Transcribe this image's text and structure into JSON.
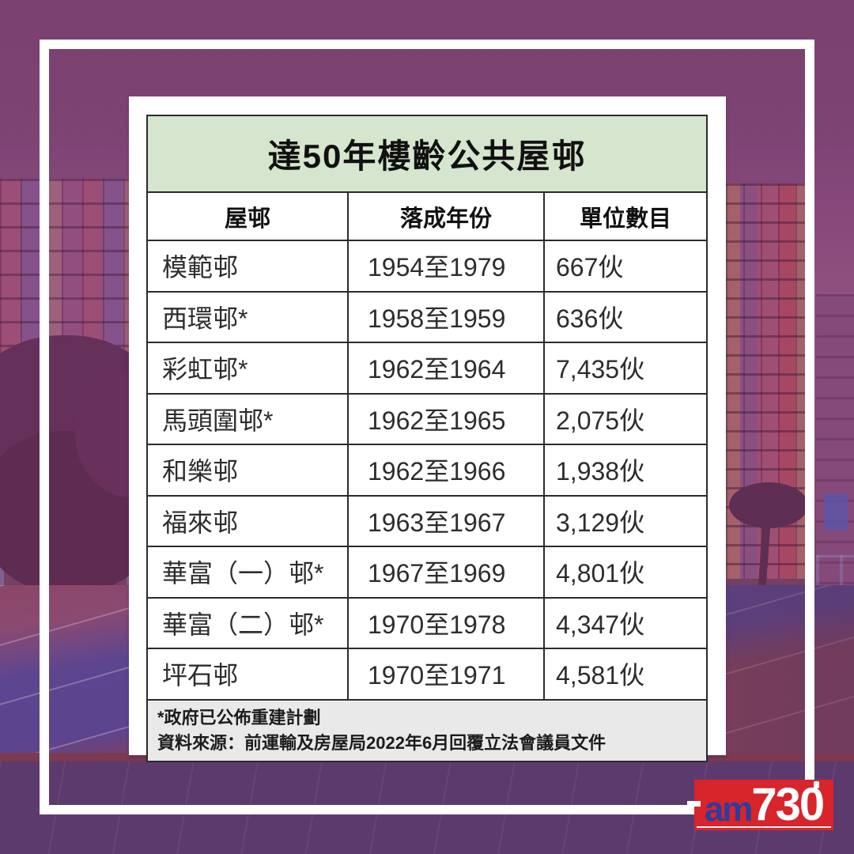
{
  "table": {
    "title": "達50年樓齡公共屋邨",
    "columns": [
      "屋邨",
      "落成年份",
      "單位數目"
    ],
    "rows": [
      {
        "estate": "模範邨",
        "years": "1954至1979",
        "units": "667伙"
      },
      {
        "estate": "西環邨*",
        "years": "1958至1959",
        "units": "636伙"
      },
      {
        "estate": "彩虹邨*",
        "years": "1962至1964",
        "units": "7,435伙"
      },
      {
        "estate": "馬頭圍邨*",
        "years": "1962至1965",
        "units": "2,075伙"
      },
      {
        "estate": "和樂邨",
        "years": "1962至1966",
        "units": "1,938伙"
      },
      {
        "estate": "福來邨",
        "years": "1963至1967",
        "units": "3,129伙"
      },
      {
        "estate": "華富（一）邨*",
        "years": "1967至1969",
        "units": "4,801伙"
      },
      {
        "estate": "華富（二）邨*",
        "years": "1970至1978",
        "units": "4,347伙"
      },
      {
        "estate": "坪石邨",
        "years": "1970至1971",
        "units": "4,581伙"
      }
    ],
    "footnotes": [
      "*政府已公佈重建計劃",
      "資料來源：前運輸及房屋局2022年6月回覆立法會議員文件"
    ]
  },
  "logo": {
    "am": "am",
    "number": "730"
  },
  "colors": {
    "title_bg": "#d6e5cd",
    "footer_bg": "#e9e9e9",
    "table_border": "#2b2b2b",
    "background_purple": "#7c4273",
    "court_blue": "#5d4590",
    "court_red": "#8e4052",
    "logo_red": "#d8242b",
    "logo_blue": "#2c3d9c"
  },
  "chart_data": {
    "type": "table",
    "title": "達50年樓齡公共屋邨",
    "columns": [
      "屋邨",
      "落成年份",
      "單位數目"
    ],
    "rows": [
      [
        "模範邨",
        "1954至1979",
        "667伙"
      ],
      [
        "西環邨*",
        "1958至1959",
        "636伙"
      ],
      [
        "彩虹邨*",
        "1962至1964",
        "7,435伙"
      ],
      [
        "馬頭圍邨*",
        "1962至1965",
        "2,075伙"
      ],
      [
        "和樂邨",
        "1962至1966",
        "1,938伙"
      ],
      [
        "福來邨",
        "1963至1967",
        "3,129伙"
      ],
      [
        "華富（一）邨*",
        "1967至1969",
        "4,801伙"
      ],
      [
        "華富（二）邨*",
        "1970至1978",
        "4,347伙"
      ],
      [
        "坪石邨",
        "1970至1971",
        "4,581伙"
      ]
    ],
    "footnotes": [
      "*政府已公佈重建計劃",
      "資料來源：前運輸及房屋局2022年6月回覆立法會議員文件"
    ]
  }
}
